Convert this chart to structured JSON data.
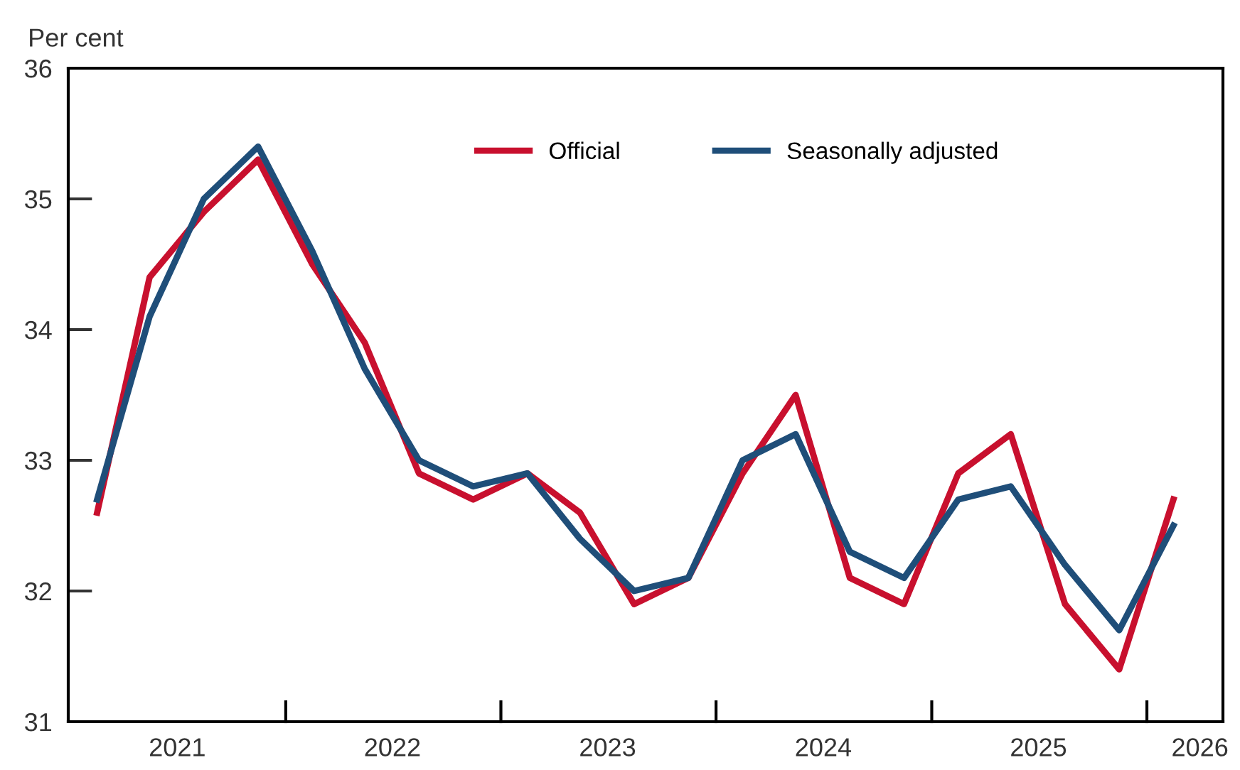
{
  "chart_data": {
    "type": "line",
    "ylabel": "Per cent",
    "x": [
      "2021-02-15",
      "2021-05-15",
      "2021-08-15",
      "2021-11-15",
      "2022-02-15",
      "2022-05-15",
      "2022-08-15",
      "2022-11-15",
      "2023-02-15",
      "2023-05-15",
      "2023-08-15",
      "2023-11-15",
      "2024-02-15",
      "2024-05-15",
      "2024-08-15",
      "2024-11-15",
      "2025-02-15",
      "2025-05-15",
      "2025-08-15",
      "2025-11-15",
      "2026-02-15"
    ],
    "series": [
      {
        "name": "Official",
        "color": "#c8102e",
        "values": [
          32.6,
          34.4,
          34.9,
          35.3,
          34.5,
          33.9,
          32.9,
          32.7,
          32.9,
          32.6,
          31.9,
          32.1,
          32.9,
          33.5,
          32.1,
          31.9,
          32.9,
          33.2,
          31.9,
          31.4,
          32.7
        ]
      },
      {
        "name": "Seasonally adjusted",
        "color": "#1f4e79",
        "values": [
          32.7,
          34.1,
          35.0,
          35.4,
          34.6,
          33.7,
          33.0,
          32.8,
          32.9,
          32.4,
          32.0,
          32.1,
          33.0,
          33.2,
          32.3,
          32.1,
          32.7,
          32.8,
          32.2,
          31.7,
          32.5
        ]
      }
    ],
    "xlim": [
      "2020-12-28",
      "2026-05-10"
    ],
    "xticks": [
      {
        "value": "2021-07-01",
        "label": "2021"
      },
      {
        "value": "2022-01-01",
        "label": null
      },
      {
        "value": "2022-07-01",
        "label": "2022"
      },
      {
        "value": "2023-01-01",
        "label": null
      },
      {
        "value": "2023-07-01",
        "label": "2023"
      },
      {
        "value": "2024-01-01",
        "label": null
      },
      {
        "value": "2024-07-01",
        "label": "2024"
      },
      {
        "value": "2025-01-01",
        "label": null
      },
      {
        "value": "2025-07-01",
        "label": "2025"
      },
      {
        "value": "2026-01-01",
        "label": null
      },
      {
        "value": "2026-04-01",
        "label": "2026"
      }
    ],
    "ylim": [
      31,
      36
    ],
    "yticks": [
      31,
      32,
      33,
      34,
      35,
      36
    ],
    "grid": false,
    "legend": "top",
    "marker": "none",
    "line_style": "solid"
  }
}
